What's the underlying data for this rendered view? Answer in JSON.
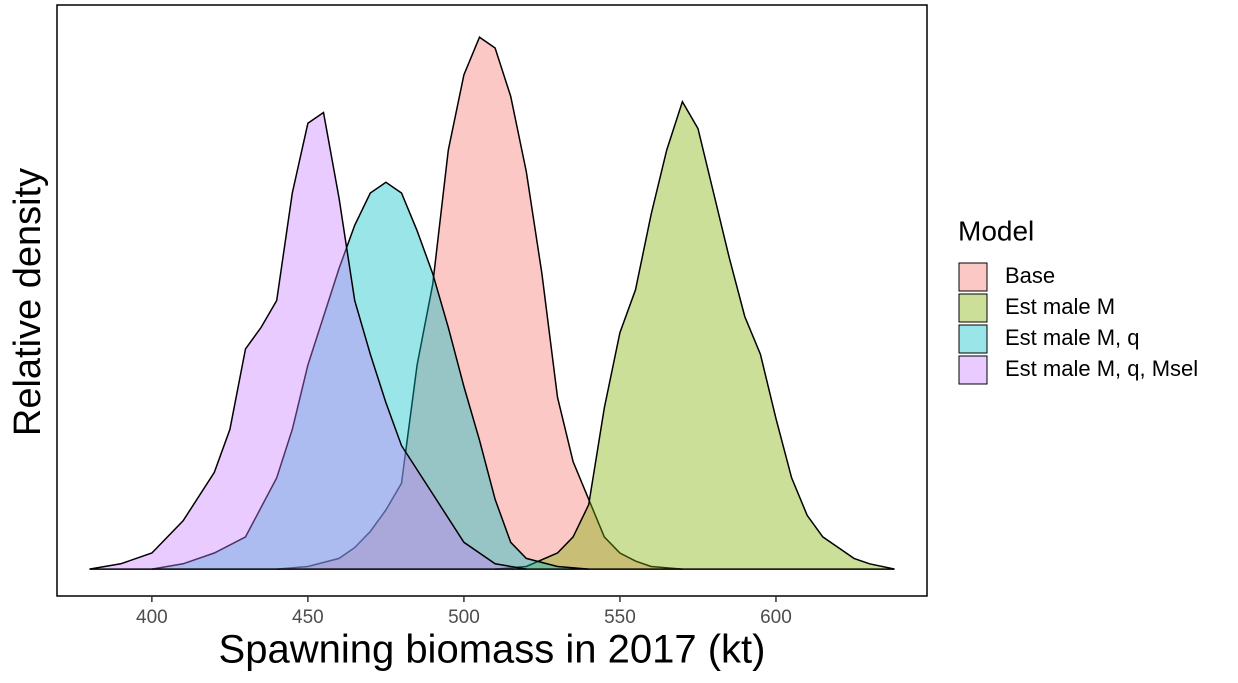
{
  "chart_data": {
    "type": "density",
    "x_label": "Spawning biomass in 2017 (kt)",
    "y_label": "Relative density",
    "legend_title": "Model",
    "legend_position": "right",
    "xlim": [
      369.6,
      648.4
    ],
    "xticks": [
      400,
      450,
      500,
      550,
      600
    ],
    "ylim": [
      -0.05,
      1.05
    ],
    "opacity": 0.4,
    "series": [
      {
        "name": "Base",
        "color": "#F8766D",
        "x": [
          440,
          450,
          460,
          465,
          470,
          475,
          480,
          485,
          490,
          495,
          500,
          505,
          510,
          515,
          520,
          525,
          530,
          535,
          540,
          545,
          550,
          555,
          560,
          570
        ],
        "values": [
          0,
          0.005,
          0.02,
          0.04,
          0.07,
          0.11,
          0.16,
          0.38,
          0.53,
          0.78,
          0.92,
          0.99,
          0.97,
          0.88,
          0.74,
          0.55,
          0.32,
          0.2,
          0.13,
          0.06,
          0.03,
          0.015,
          0.005,
          0
        ]
      },
      {
        "name": "Est male M",
        "color": "#7CAE00",
        "x": [
          510,
          520,
          530,
          535,
          540,
          545,
          550,
          555,
          560,
          565,
          570,
          575,
          580,
          585,
          590,
          595,
          600,
          605,
          610,
          615,
          620,
          625,
          630,
          638
        ],
        "values": [
          0,
          0.005,
          0.03,
          0.06,
          0.12,
          0.3,
          0.44,
          0.52,
          0.66,
          0.78,
          0.87,
          0.82,
          0.7,
          0.58,
          0.47,
          0.4,
          0.28,
          0.17,
          0.1,
          0.06,
          0.04,
          0.02,
          0.01,
          0
        ]
      },
      {
        "name": "Est male M, q",
        "color": "#00BFC4",
        "x": [
          400,
          410,
          420,
          430,
          440,
          445,
          450,
          455,
          460,
          465,
          470,
          475,
          480,
          485,
          490,
          495,
          500,
          505,
          510,
          515,
          520,
          530,
          540
        ],
        "values": [
          0,
          0.01,
          0.03,
          0.06,
          0.17,
          0.26,
          0.38,
          0.47,
          0.56,
          0.64,
          0.7,
          0.72,
          0.7,
          0.63,
          0.55,
          0.45,
          0.34,
          0.24,
          0.13,
          0.05,
          0.02,
          0.005,
          0
        ]
      },
      {
        "name": "Est male M, q, Msel",
        "color": "#C77CFF",
        "x": [
          380,
          390,
          400,
          410,
          420,
          425,
          430,
          435,
          440,
          445,
          450,
          455,
          460,
          465,
          470,
          475,
          480,
          490,
          500,
          510,
          520
        ],
        "values": [
          0,
          0.01,
          0.03,
          0.09,
          0.18,
          0.26,
          0.41,
          0.45,
          0.5,
          0.7,
          0.83,
          0.85,
          0.69,
          0.5,
          0.4,
          0.31,
          0.23,
          0.14,
          0.05,
          0.01,
          0
        ]
      }
    ]
  }
}
